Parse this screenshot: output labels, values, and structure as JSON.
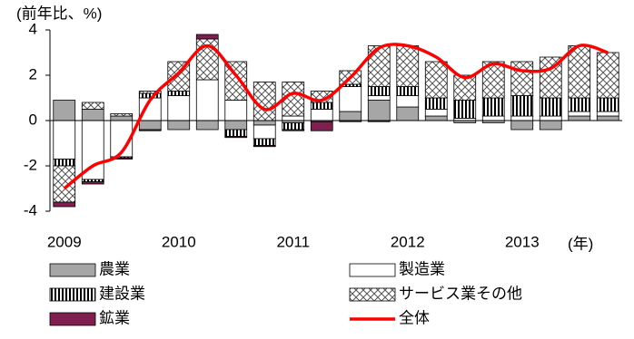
{
  "chart_data": {
    "type": "bar",
    "y_label": "(前年比、%)",
    "x_label": "(年)",
    "categories": [
      "2009",
      null,
      null,
      null,
      "2010",
      null,
      null,
      null,
      "2011",
      null,
      null,
      null,
      "2012",
      null,
      null,
      null,
      "2013",
      null,
      null,
      null
    ],
    "ylim": [
      -4,
      4
    ],
    "yticks": [
      -4,
      -2,
      0,
      2,
      4
    ],
    "grid": false,
    "series": [
      {
        "name": "農業",
        "color": "#a6a6a6",
        "pattern": "solid",
        "values": [
          0.9,
          0.5,
          0.2,
          -0.4,
          -0.4,
          -0.4,
          -0.4,
          -0.2,
          -0.1,
          -0.05,
          0.4,
          0.9,
          0.6,
          0.2,
          -0.1,
          -0.1,
          -0.4,
          -0.4,
          0.2,
          0.2
        ]
      },
      {
        "name": "製造業",
        "color": "#ffffff",
        "pattern": "solid",
        "values": [
          -1.7,
          -2.6,
          -1.6,
          1.0,
          1.1,
          1.8,
          0.9,
          -0.6,
          0.2,
          0.5,
          1.1,
          0.2,
          0.5,
          0.3,
          0.1,
          0.2,
          0.2,
          0.2,
          0.2,
          0.2
        ]
      },
      {
        "name": "建設業",
        "color": "#000000",
        "pattern": "vertical",
        "values": [
          -0.3,
          -0.1,
          -0.05,
          0.2,
          0.2,
          0.0,
          -0.3,
          -0.3,
          -0.3,
          0.3,
          0.1,
          0.4,
          0.4,
          0.5,
          0.8,
          0.8,
          0.9,
          0.8,
          0.6,
          0.6
        ]
      },
      {
        "name": "サービス業その他",
        "color": "#000000",
        "pattern": "crosshatch",
        "values": [
          -1.6,
          0.3,
          0.1,
          0.1,
          1.3,
          1.8,
          1.7,
          1.7,
          1.5,
          0.5,
          0.6,
          1.8,
          1.8,
          1.6,
          1.1,
          1.6,
          1.5,
          1.8,
          2.3,
          2.0
        ]
      },
      {
        "name": "鉱業",
        "color": "#7f1f4f",
        "pattern": "solid",
        "values": [
          -0.2,
          -0.1,
          -0.05,
          -0.05,
          0.0,
          0.2,
          -0.05,
          -0.05,
          -0.05,
          -0.4,
          -0.05,
          -0.05,
          0.0,
          0.0,
          0.0,
          0.0,
          0.0,
          0.0,
          0.0,
          0.0
        ]
      },
      {
        "name": "全体",
        "color": "#ff0000",
        "type": "line",
        "values": [
          -3.0,
          -2.0,
          -1.4,
          0.9,
          2.1,
          3.3,
          2.0,
          0.5,
          1.2,
          0.9,
          1.9,
          3.2,
          3.3,
          2.8,
          1.9,
          2.5,
          2.2,
          2.3,
          3.3,
          3.0
        ]
      }
    ]
  }
}
